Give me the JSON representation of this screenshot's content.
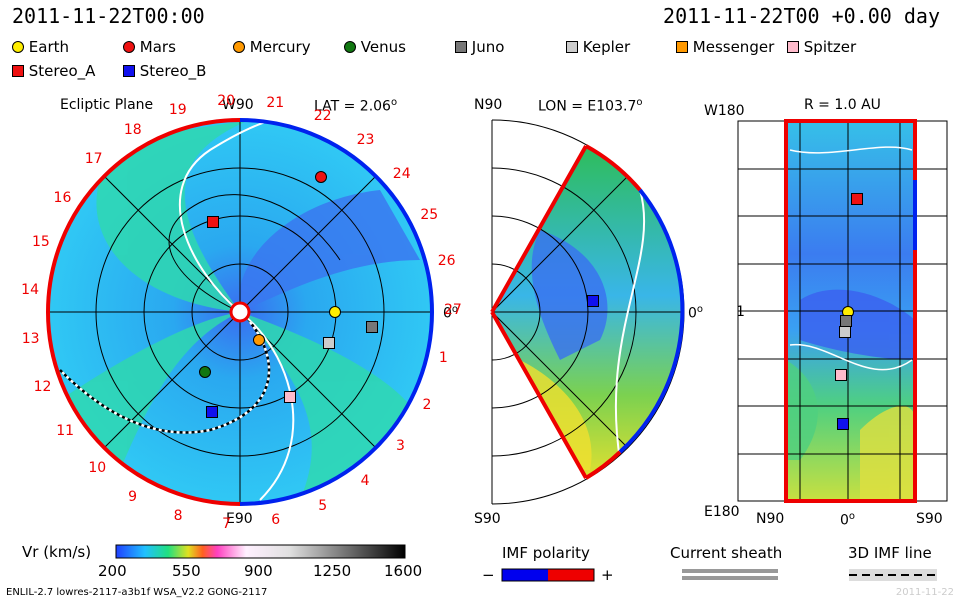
{
  "header": {
    "datetime_left": "2011-11-22T00:00",
    "datetime_right": "2011-11-22T00 +0.00 day"
  },
  "legend": [
    {
      "name": "Earth",
      "shape": "circle",
      "color": "#ffee00"
    },
    {
      "name": "Mars",
      "shape": "circle",
      "color": "#ee1111"
    },
    {
      "name": "Mercury",
      "shape": "circle",
      "color": "#ff9900"
    },
    {
      "name": "Venus",
      "shape": "circle",
      "color": "#117711"
    },
    {
      "name": "Juno",
      "shape": "square",
      "color": "#777777"
    },
    {
      "name": "Kepler",
      "shape": "square",
      "color": "#cccccc"
    },
    {
      "name": "Messenger",
      "shape": "square",
      "color": "#ff9900"
    },
    {
      "name": "Spitzer",
      "shape": "square",
      "color": "#ffbbcc"
    },
    {
      "name": "Stereo_A",
      "shape": "square",
      "color": "#ee1111"
    },
    {
      "name": "Stereo_B",
      "shape": "square",
      "color": "#1111ee"
    }
  ],
  "panels": {
    "ecliptic": {
      "title": "Ecliptic Plane",
      "top": "W90",
      "bottom": "E90",
      "right": "0",
      "lat_label": "LAT = 2.06",
      "deg": "o",
      "carrington_labels": [
        "20",
        "21",
        "22",
        "23",
        "24",
        "25",
        "26",
        "27",
        "1",
        "2",
        "3",
        "4",
        "5",
        "6",
        "7",
        "8",
        "9",
        "10",
        "11",
        "12",
        "13",
        "14",
        "15",
        "16",
        "17",
        "18",
        "19"
      ]
    },
    "meridional": {
      "top": "N90",
      "bottom": "S90",
      "right": "0",
      "lon_label": "LON = E103.7",
      "deg": "o"
    },
    "radial": {
      "r_label": "R = 1.0 AU",
      "top_left": "W180",
      "bottom_left": "E180",
      "mid_left": "1",
      "bottom_ticks": [
        "N90",
        "0",
        "S90"
      ],
      "deg": "o"
    }
  },
  "colorbar": {
    "label": "Vr (km/s)",
    "ticks": [
      "200",
      "550",
      "900",
      "1250",
      "1600"
    ],
    "range": [
      200,
      1600
    ]
  },
  "imf": {
    "title": "IMF polarity",
    "minus": "−",
    "plus": "+",
    "negative_color": "#0000ee",
    "positive_color": "#ee0000"
  },
  "current_sheath": {
    "title": "Current sheath"
  },
  "imf_line": {
    "title": "3D IMF line"
  },
  "footer": {
    "left": "ENLIL-2.7 lowres-2117-a3b1f WSA_V2.2 GONG-2117",
    "right": "2011-11-22"
  }
}
